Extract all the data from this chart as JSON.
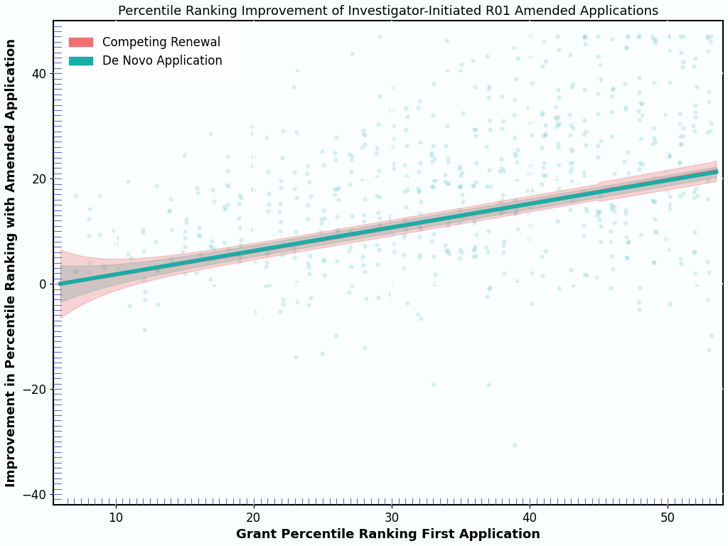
{
  "title": "Percentile Ranking Improvement of Investigator-Initiated R01 Amended Applications",
  "xlabel": "Grant Percentile Ranking First Application",
  "ylabel": "Improvement in Percentile Ranking with Amended Application",
  "xlim": [
    5.5,
    54
  ],
  "ylim": [
    -42,
    50
  ],
  "xticks": [
    10,
    20,
    30,
    40,
    50
  ],
  "yticks": [
    -40,
    -20,
    0,
    20,
    40
  ],
  "competing_renewal_color": "#F07070",
  "de_novo_color": "#1AADA5",
  "scatter_color": "#7DCFCA",
  "rug_color": "#5555BB",
  "background_color": "#FAFEFF",
  "grid_color": "#FFFFFF",
  "title_fontsize": 13,
  "label_fontsize": 13,
  "tick_fontsize": 12,
  "legend_fontsize": 12
}
